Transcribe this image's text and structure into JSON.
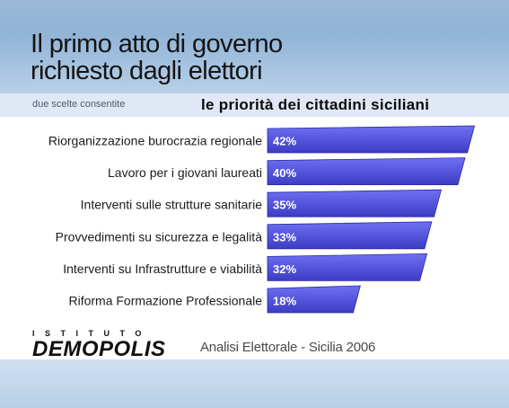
{
  "header": {
    "title_line1": "Il primo atto di governo",
    "title_line2": "richiesto dagli elettori"
  },
  "subheader": {
    "note": "due scelte consentite",
    "title": "le priorità dei cittadini siciliani"
  },
  "footer": {
    "logo_top": "ISTITUTO",
    "logo_main": "DEMOPOLIS",
    "source": "Analisi Elettorale - Sicilia 2006"
  },
  "colors": {
    "bar_top": "#6f70f2",
    "bar_bottom": "#3c3cc6",
    "bar_edge": "#2a2aa0"
  },
  "chart_data": {
    "type": "bar",
    "orientation": "horizontal",
    "categories": [
      "Riorganizzazione burocrazia regionale",
      "Lavoro per i giovani laureati",
      "Interventi sulle strutture sanitarie",
      "Provvedimenti su sicurezza e legalità",
      "Interventi su Infrastrutture e viabilità",
      "Riforma Formazione Professionale"
    ],
    "values": [
      42,
      40,
      35,
      33,
      32,
      18
    ],
    "value_labels": [
      "42%",
      "40%",
      "35%",
      "33%",
      "32%",
      "18%"
    ],
    "unit": "%",
    "xlim": [
      0,
      100
    ],
    "grid": false,
    "legend": "none"
  }
}
